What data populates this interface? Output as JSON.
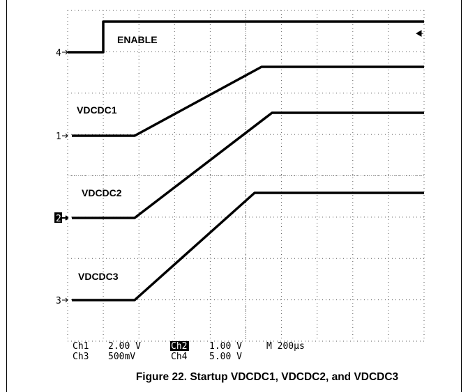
{
  "scope": {
    "traces": [
      {
        "label": "ENABLE",
        "marker": "4"
      },
      {
        "label": "VDCDC1",
        "marker": "1"
      },
      {
        "label": "VDCDC2",
        "marker": "2"
      },
      {
        "label": "VDCDC3",
        "marker": "3"
      }
    ],
    "readout": [
      [
        "Ch1",
        "2.00 V",
        "Ch2",
        "1.00 V",
        "M 200µs"
      ],
      [
        "Ch3",
        "500mV",
        "Ch4",
        "5.00 V"
      ]
    ]
  },
  "caption": "Figure 22. Startup VDCDC1, VDCDC2, and VDCDC3"
}
